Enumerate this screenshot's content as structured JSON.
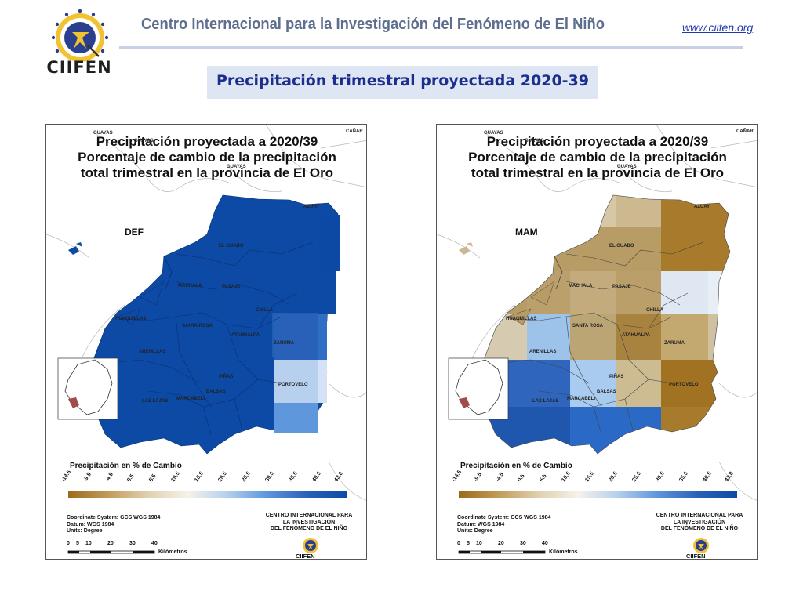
{
  "header": {
    "logo_text": "CIIFEN",
    "title": "Centro Internacional para la Investigación del Fenómeno de El Niño",
    "url": "www.ciifen.org"
  },
  "banner": {
    "title": "Precipitación trimestral proyectada 2020-39"
  },
  "colors": {
    "accent": "#1c2f8e",
    "header_text": "#5e6e8e",
    "banner_bg": "#dde6f2"
  },
  "maps": [
    {
      "title_lines": [
        "Precipitación proyectada a 2020/39",
        "Porcentaje de cambio de la precipitación",
        "total trimestral en la provincia de El Oro"
      ],
      "season": "DEF",
      "dominant_color": "#0c4aa6"
    },
    {
      "title_lines": [
        "Precipitación proyectada a 2020/39",
        "Porcentaje de cambio de la precipitación",
        "total trimestral en la provincia de El Oro"
      ],
      "season": "MAM",
      "dominant_color": "#b89c66"
    }
  ],
  "places": {
    "guayas": "GUAYAS",
    "canar": "CAÑAR",
    "azuay": "AZUAY",
    "el_guabo": "EL GUABO",
    "machala": "MACHALA",
    "pasaje": "PASAJE",
    "chilla": "CHILLA",
    "huaquillas": "HUAQUILLAS",
    "santa_rosa": "SANTA ROSA",
    "atahualpa": "ATAHUALPA",
    "zaruma": "ZARUMA",
    "arenillas": "ARENILLAS",
    "pinas": "PIÑAS",
    "balsas": "BALSAS",
    "portovelo": "PORTOVELO",
    "las_lajas": "LAS LAJAS",
    "marcabeli": "MARCABELI"
  },
  "legend": {
    "title": "Precipitación en % de Cambio",
    "ticks": [
      "-14.5",
      "-9.5",
      "-4.5",
      "0.5",
      "5.5",
      "10.5",
      "15.5",
      "20.5",
      "25.5",
      "30.5",
      "35.5",
      "40.5",
      "43.8"
    ],
    "colors": [
      "#9c6a1c",
      "#c19a56",
      "#e0d2b2",
      "#f5f2e9",
      "#b6d0ee",
      "#5f97dd",
      "#2a61b8",
      "#0c4aa6"
    ]
  },
  "meta": {
    "coord": "Coordinate System: GCS WGS 1984",
    "datum": "Datum: WGS 1984",
    "units": "Units: Degree",
    "org_line1": "CENTRO INTERNACIONAL PARA",
    "org_line2": "LA INVESTIGACIÓN",
    "org_line3": "DEL FENÓMENO DE EL NIÑO",
    "mini_logo": "CIIFEN",
    "scale_ticks": [
      "0",
      "5",
      "10",
      "20",
      "30",
      "40"
    ],
    "scale_unit": "Kilómetros"
  }
}
